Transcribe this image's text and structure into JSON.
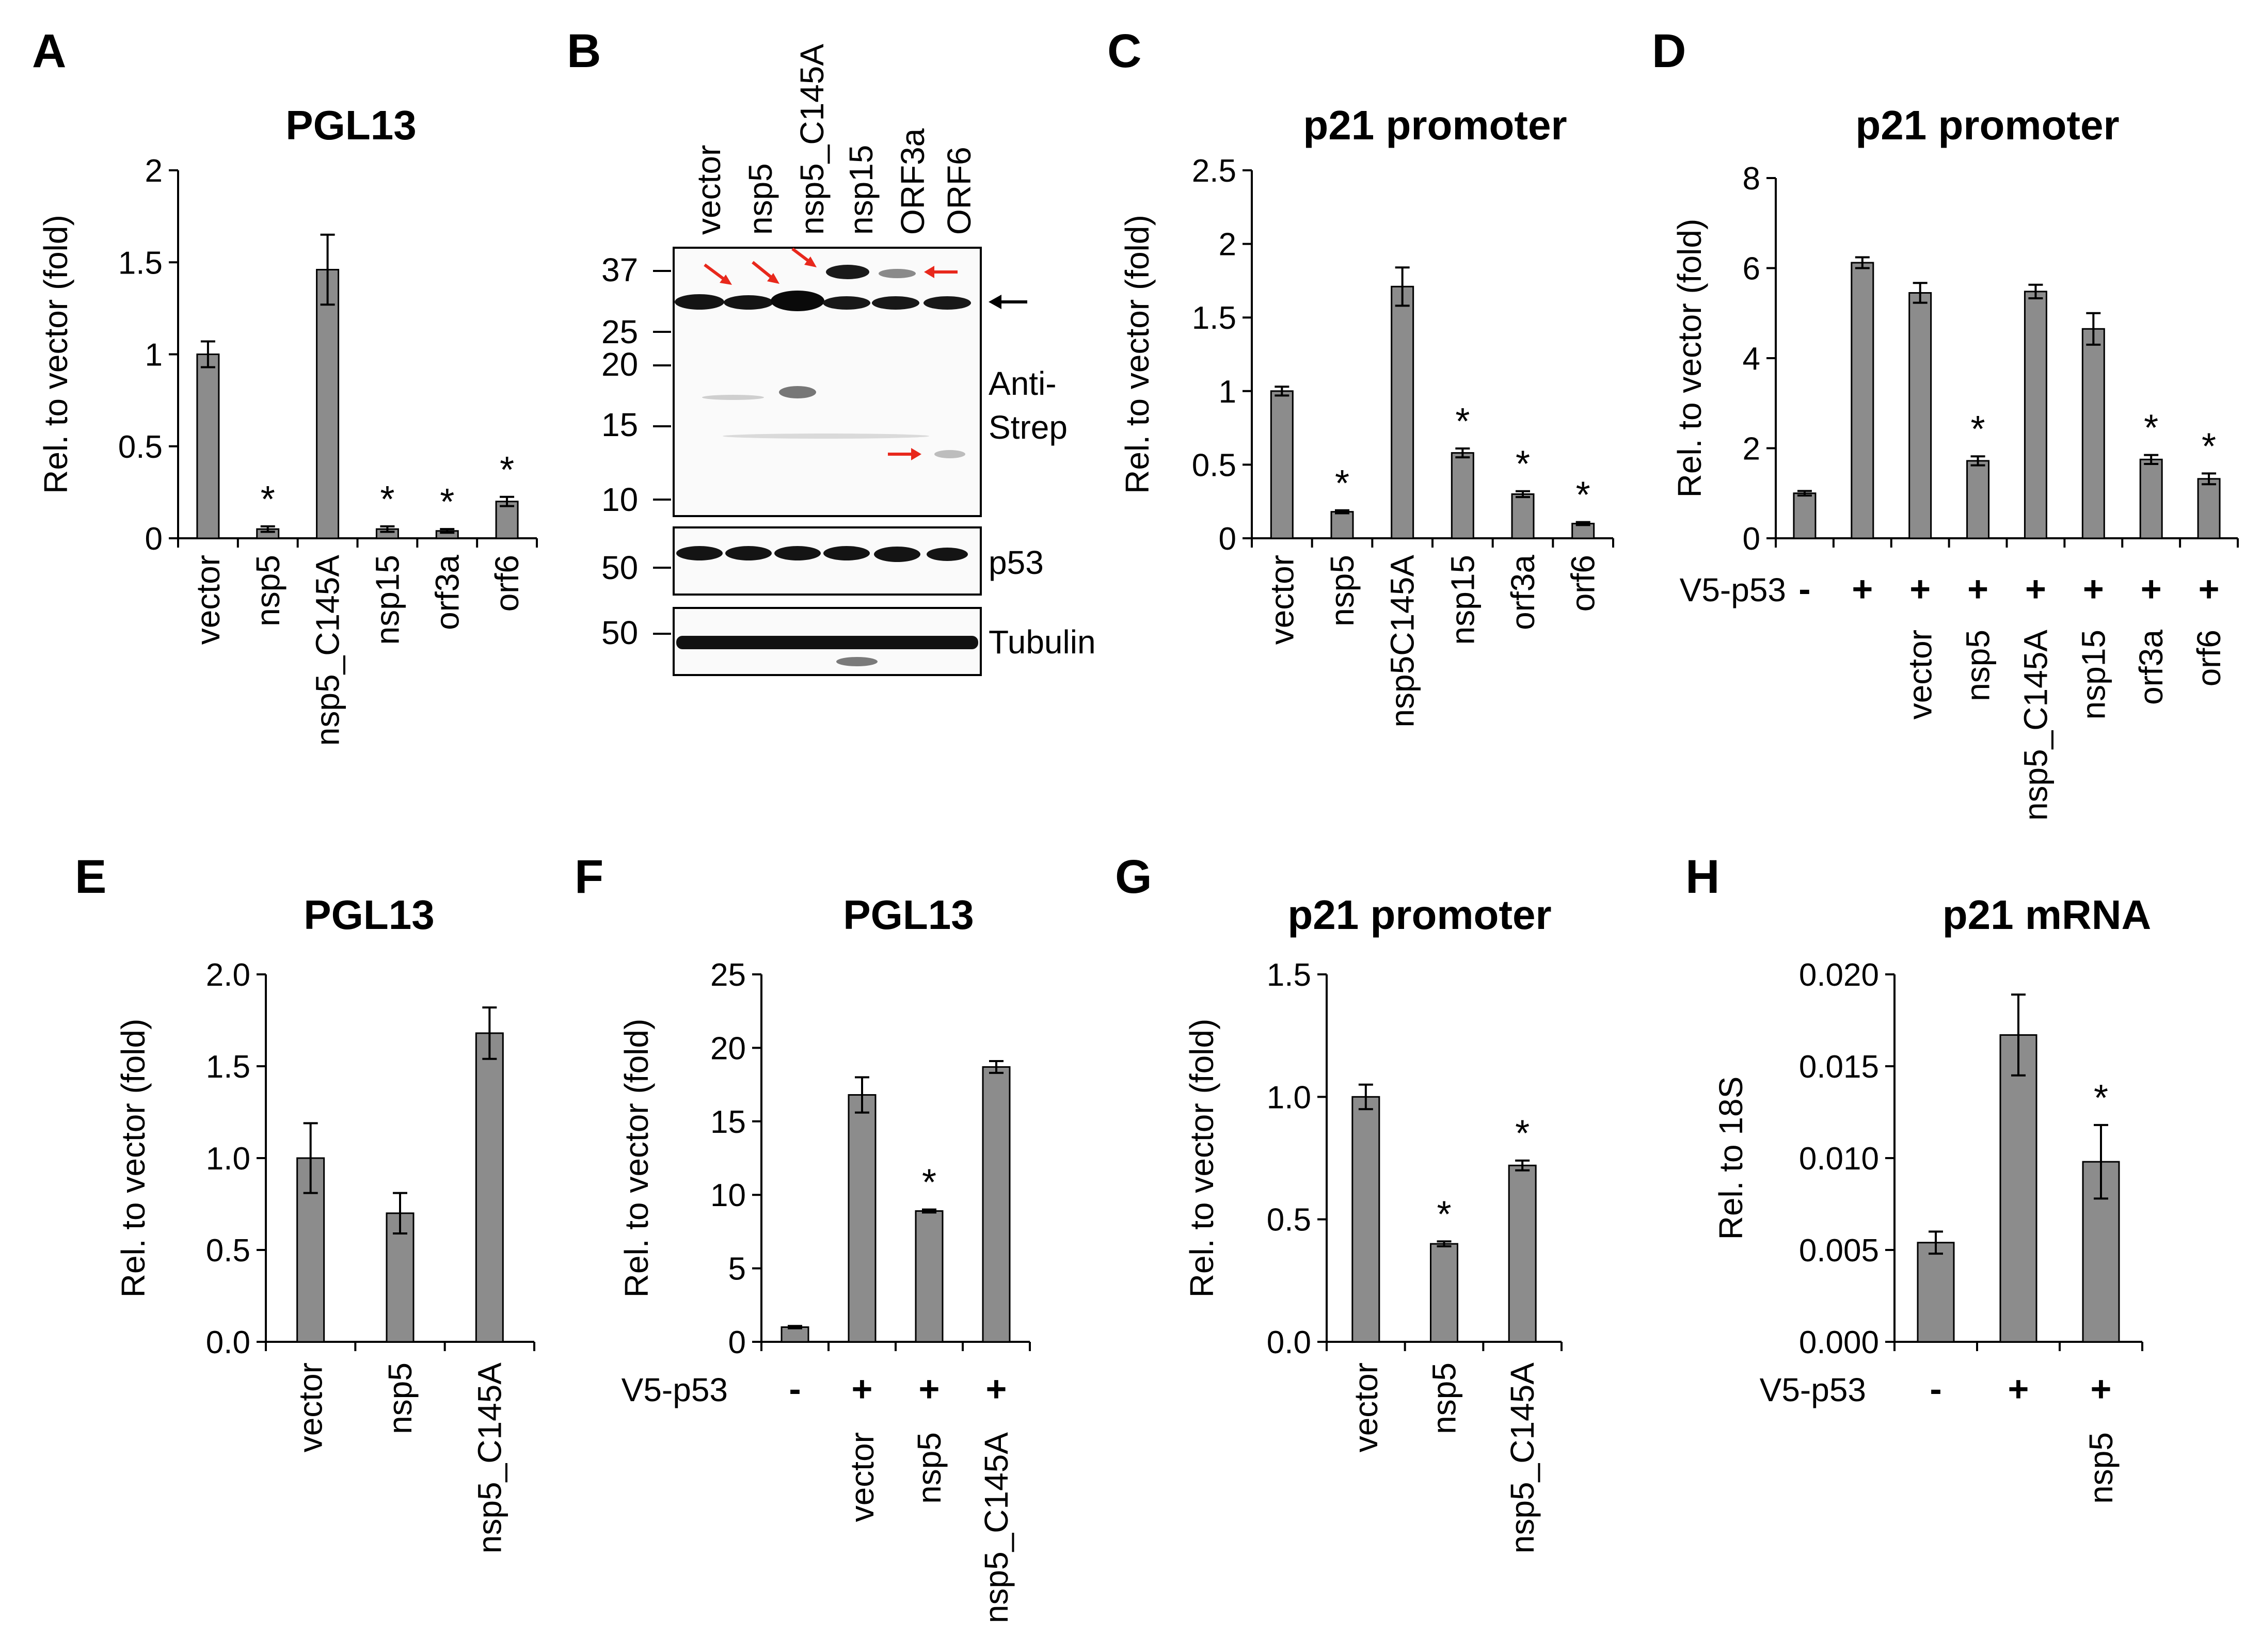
{
  "chart_data": [
    {
      "panel": "A",
      "type": "bar",
      "title": "PGL13",
      "ylabel": "Rel. to vector (fold)",
      "yticks": [
        "0",
        "0.5",
        "1",
        "1.5",
        "2"
      ],
      "ylim": [
        0,
        2
      ],
      "categories": [
        "vector",
        "nsp5",
        "nsp5_C145A",
        "nsp15",
        "orf3a",
        "orf6"
      ],
      "values": [
        1.0,
        0.05,
        1.46,
        0.05,
        0.04,
        0.2
      ],
      "errors": [
        0.07,
        0.015,
        0.19,
        0.015,
        0.01,
        0.025
      ],
      "significance": [
        "",
        "*",
        "",
        "*",
        "*",
        "*"
      ]
    },
    {
      "panel": "C",
      "type": "bar",
      "title": "p21 promoter",
      "ylabel": "Rel. to vector (fold)",
      "yticks": [
        "0",
        "0.5",
        "1",
        "1.5",
        "2",
        "2.5"
      ],
      "ylim": [
        0,
        2.5
      ],
      "categories": [
        "vector",
        "nsp5",
        "nsp5C145A",
        "nsp15",
        "orf3a",
        "orf6"
      ],
      "values": [
        1.0,
        0.18,
        1.71,
        0.58,
        0.3,
        0.1
      ],
      "errors": [
        0.03,
        0.01,
        0.13,
        0.03,
        0.02,
        0.01
      ],
      "significance": [
        "",
        "*",
        "",
        "*",
        "*",
        "*"
      ]
    },
    {
      "panel": "D",
      "type": "bar",
      "title": "p21 promoter",
      "ylabel": "Rel. to vector (fold)",
      "yticks": [
        "0",
        "2",
        "4",
        "6",
        "8"
      ],
      "ylim": [
        0,
        8
      ],
      "categories": [
        "",
        "",
        "vector",
        "nsp5",
        "nsp5_C145A",
        "nsp15",
        "orf3a",
        "orf6"
      ],
      "values": [
        1.0,
        6.12,
        5.45,
        1.72,
        5.48,
        4.65,
        1.75,
        1.32
      ],
      "errors": [
        0.05,
        0.12,
        0.22,
        0.1,
        0.15,
        0.35,
        0.1,
        0.12
      ],
      "significance": [
        "",
        "",
        "",
        "*",
        "",
        "",
        "*",
        "*"
      ],
      "treatment_label": "V5-p53",
      "treatment": [
        "-",
        "+",
        "+",
        "+",
        "+",
        "+",
        "+",
        "+"
      ]
    },
    {
      "panel": "E",
      "type": "bar",
      "title": "PGL13",
      "ylabel": "Rel. to vector (fold)",
      "yticks": [
        "0.0",
        "0.5",
        "1.0",
        "1.5",
        "2.0"
      ],
      "ylim": [
        0,
        2
      ],
      "categories": [
        "vector",
        "nsp5",
        "nsp5_C145A"
      ],
      "values": [
        1.0,
        0.7,
        1.68
      ],
      "errors": [
        0.19,
        0.11,
        0.14
      ],
      "significance": [
        "",
        "",
        ""
      ]
    },
    {
      "panel": "F",
      "type": "bar",
      "title": "PGL13",
      "ylabel": "Rel. to vector (fold)",
      "yticks": [
        "0",
        "5",
        "10",
        "15",
        "20",
        "25"
      ],
      "ylim": [
        0,
        25
      ],
      "categories": [
        "",
        "vector",
        "nsp5",
        "nsp5_C145A"
      ],
      "values": [
        1.0,
        16.8,
        8.9,
        18.7
      ],
      "errors": [
        0.08,
        1.2,
        0.1,
        0.4
      ],
      "significance": [
        "",
        "",
        "*",
        ""
      ],
      "treatment_label": "V5-p53",
      "treatment": [
        "-",
        "+",
        "+",
        "+"
      ]
    },
    {
      "panel": "G",
      "type": "bar",
      "title": "p21 promoter",
      "ylabel": "Rel. to vector (fold)",
      "yticks": [
        "0.0",
        "0.5",
        "1.0",
        "1.5"
      ],
      "ylim": [
        0,
        1.5
      ],
      "categories": [
        "vector",
        "nsp5",
        "nsp5_C145A"
      ],
      "values": [
        1.0,
        0.4,
        0.72
      ],
      "errors": [
        0.05,
        0.01,
        0.02
      ],
      "significance": [
        "",
        "*",
        "*"
      ]
    },
    {
      "panel": "H",
      "type": "bar",
      "title": "p21 mRNA",
      "ylabel": "Rel. to 18S",
      "yticks": [
        "0.000",
        "0.005",
        "0.010",
        "0.015",
        "0.020"
      ],
      "ylim": [
        0,
        0.02
      ],
      "categories": [
        "",
        "",
        "nsp5"
      ],
      "values": [
        0.0054,
        0.0167,
        0.0098
      ],
      "errors": [
        0.0006,
        0.0022,
        0.002
      ],
      "significance": [
        "",
        "",
        "*"
      ],
      "treatment_label": "V5-p53",
      "treatment": [
        "-",
        "+",
        "+"
      ]
    }
  ],
  "western_blot": {
    "panel": "B",
    "lanes": [
      "vector",
      "nsp5",
      "nsp5_C145A",
      "nsp15",
      "ORF3a",
      "ORF6"
    ],
    "main_markers": [
      "37",
      "25",
      "20",
      "15",
      "10"
    ],
    "p53_marker": "50",
    "tubulin_marker": "50",
    "antibody_label_1": "Anti-",
    "antibody_label_2": "Strep",
    "p53_label": "p53",
    "tubulin_label": "Tubulin",
    "band_color": "#141414",
    "arrow_color": "#e8281c"
  },
  "colors": {
    "bar": "#8c8c8c",
    "axis": "#000000"
  }
}
